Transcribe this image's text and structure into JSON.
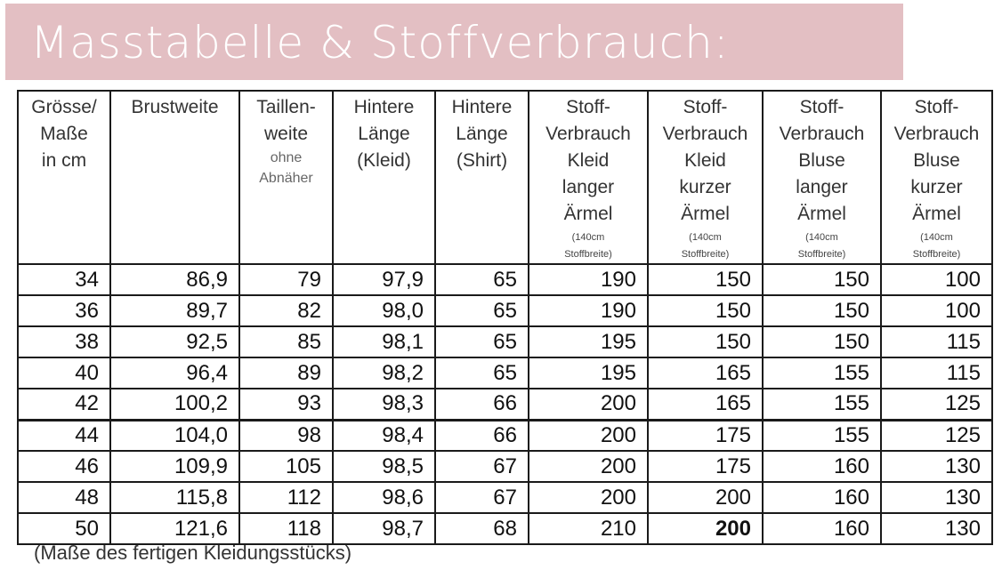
{
  "title": "Masstabelle & Stoffverbrauch:",
  "columns": [
    {
      "label": "Grösse/\nMaße\nin cm",
      "sub": "",
      "note": ""
    },
    {
      "label": "Brustweite",
      "sub": "",
      "note": ""
    },
    {
      "label": "Taillen-\nweite",
      "sub": "ohne\nAbnäher",
      "note": ""
    },
    {
      "label": "Hintere\nLänge\n(Kleid)",
      "sub": "",
      "note": ""
    },
    {
      "label": "Hintere\nLänge\n(Shirt)",
      "sub": "",
      "note": ""
    },
    {
      "label": "Stoff-\nVerbrauch\nKleid\nlanger\nÄrmel",
      "sub": "",
      "note": "(140cm\nStoffbreite)"
    },
    {
      "label": "Stoff-\nVerbrauch\nKleid\nkurzer\nÄrmel",
      "sub": "",
      "note": "(140cm\nStoffbreite)"
    },
    {
      "label": "Stoff-\nVerbrauch\nBluse\nlanger\nÄrmel",
      "sub": "",
      "note": "(140cm\nStoffbreite)"
    },
    {
      "label": "Stoff-\nVerbrauch\nBluse\nkurzer\nÄrmel",
      "sub": "",
      "note": "(140cm\nStoffbreite)"
    }
  ],
  "rows": [
    [
      "34",
      "86,9",
      "79",
      "97,9",
      "65",
      "190",
      "150",
      "150",
      "100"
    ],
    [
      "36",
      "89,7",
      "82",
      "98,0",
      "65",
      "190",
      "150",
      "150",
      "100"
    ],
    [
      "38",
      "92,5",
      "85",
      "98,1",
      "65",
      "195",
      "150",
      "150",
      "115"
    ],
    [
      "40",
      "96,4",
      "89",
      "98,2",
      "65",
      "195",
      "165",
      "155",
      "115"
    ],
    [
      "42",
      "100,2",
      "93",
      "98,3",
      "66",
      "200",
      "165",
      "155",
      "125"
    ],
    [
      "44",
      "104,0",
      "98",
      "98,4",
      "66",
      "200",
      "175",
      "155",
      "125"
    ],
    [
      "46",
      "109,9",
      "105",
      "98,5",
      "67",
      "200",
      "175",
      "160",
      "130"
    ],
    [
      "48",
      "115,8",
      "112",
      "98,6",
      "67",
      "200",
      "200",
      "160",
      "130"
    ],
    [
      "50",
      "121,6",
      "118",
      "98,7",
      "68",
      "210",
      "200",
      "160",
      "130"
    ]
  ],
  "footnote": "(Maße des fertigen Kleidungsstücks)",
  "colors": {
    "banner": "#e3bfc3",
    "title": "#ffffff"
  }
}
